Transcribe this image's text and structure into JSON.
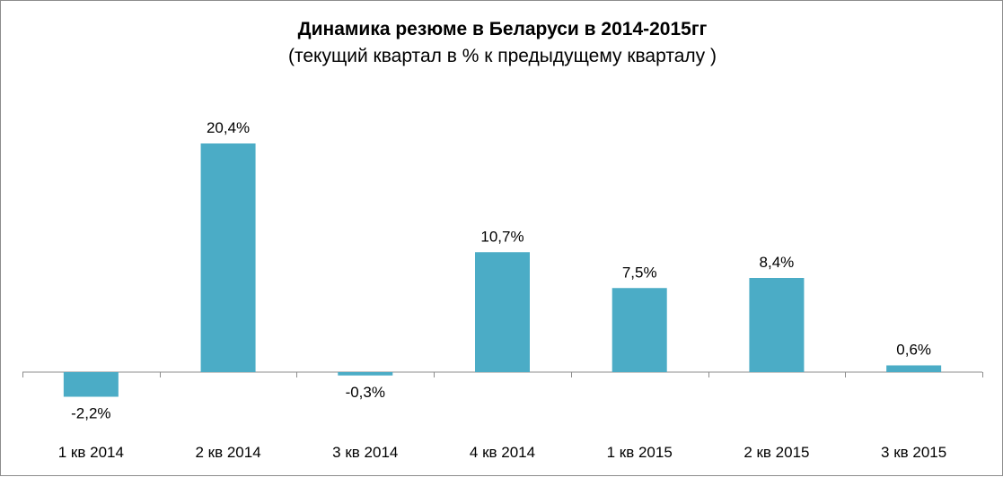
{
  "chart_data": {
    "type": "bar",
    "title": "Динамика резюме в Беларуси в 2014-2015гг",
    "subtitle": "(текущий квартал в % к предыдущему кварталу )",
    "categories": [
      "1 кв 2014",
      "2 кв 2014",
      "3 кв 2014",
      "4 кв 2014",
      "1 кв 2015",
      "2 кв 2015",
      "3 кв 2015"
    ],
    "values": [
      -2.2,
      20.4,
      -0.3,
      10.7,
      7.5,
      8.4,
      0.6
    ],
    "data_labels": [
      "-2,2%",
      "20,4%",
      "-0,3%",
      "10,7%",
      "7,5%",
      "8,4%",
      "0,6%"
    ],
    "xlabel": "",
    "ylabel": "",
    "grid": false,
    "legend": "none",
    "bar_color": "#4BACC6"
  }
}
